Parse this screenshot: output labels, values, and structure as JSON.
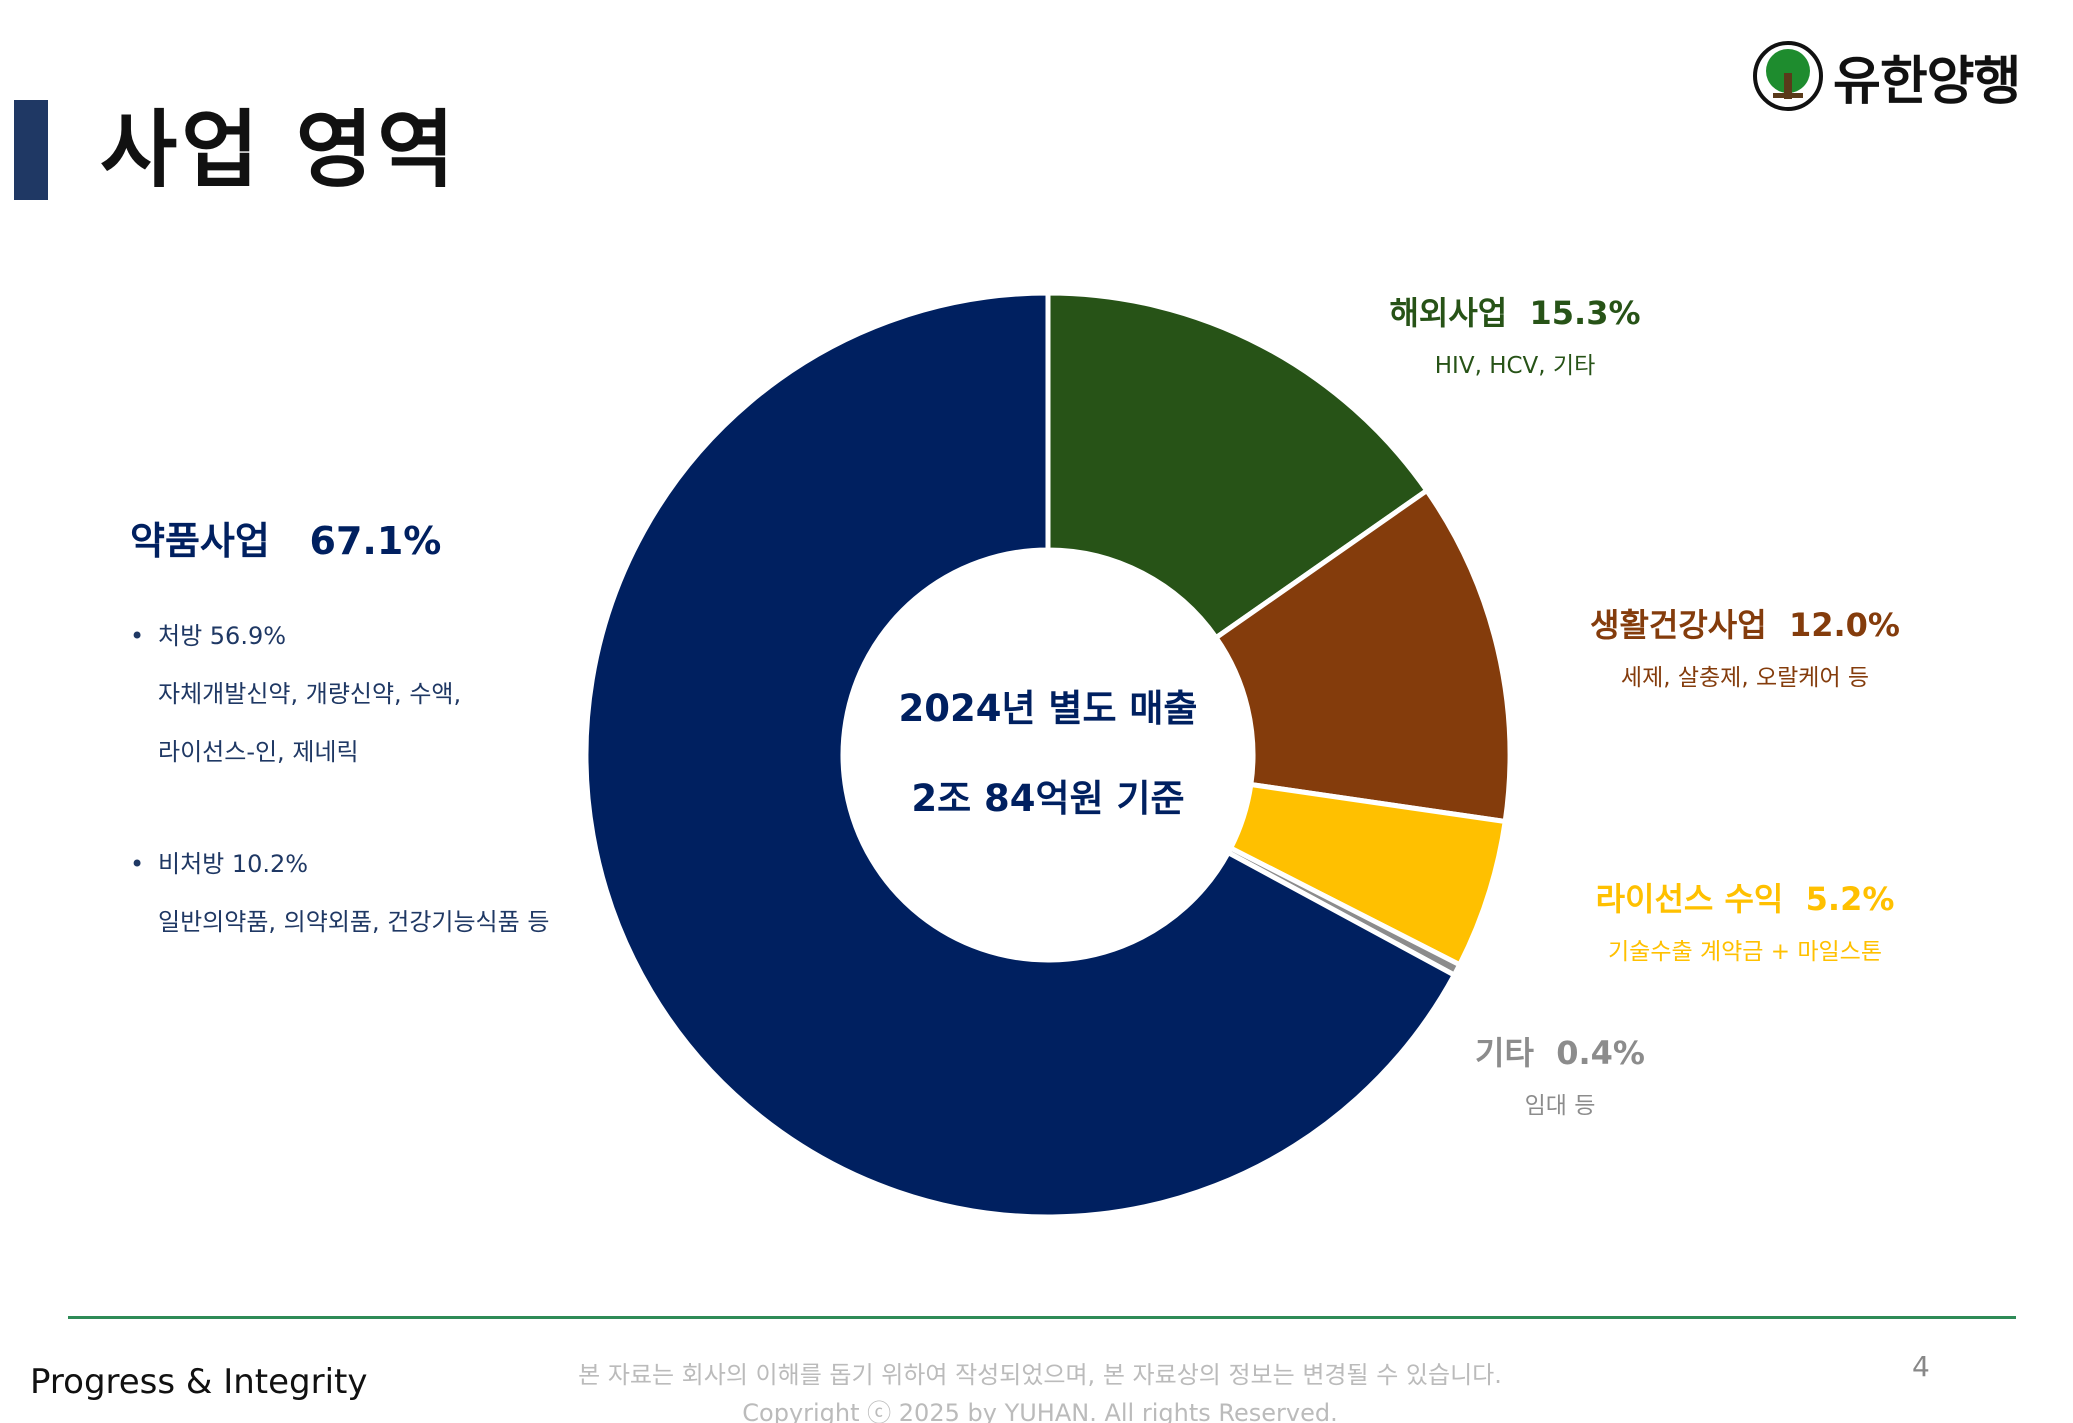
{
  "page": {
    "title": "사업 영역",
    "page_number": "4",
    "slogan": "Progress & Integrity",
    "disclaimer": "본 자료는 회사의 이해를 돕기 위하여 작성되었으며, 본 자료상의 정보는 변경될 수 있습니다.",
    "copyright": "Copyright ⓒ 2025 by YUHAN.  All rights Reserved."
  },
  "logo": {
    "text": "유한양행",
    "icon": "tree-emblem-icon"
  },
  "left_panel": {
    "heading": "약품사업   67.1%",
    "items": [
      {
        "bullet": "•",
        "text": "처방 56.9%"
      },
      {
        "text": "자체개발신약, 개량신약, 수액,"
      },
      {
        "text": "라이선스-인, 제네릭"
      },
      {
        "bullet": "•",
        "text": "비처방 10.2%"
      },
      {
        "text": "일반의약품, 의약외품, 건강기능식품 등"
      }
    ]
  },
  "chart_data": {
    "type": "pie",
    "variant": "donut",
    "center_text": [
      "2024년 별도 매출",
      "2조 84억원 기준"
    ],
    "series": [
      {
        "name": "해외사업",
        "value": 15.3,
        "value_label": "15.3%",
        "detail": "HIV, HCV, 기타",
        "color": "#275317"
      },
      {
        "name": "생활건강사업",
        "value": 12.0,
        "value_label": "12.0%",
        "detail": "세제, 살충제, 오랄케어 등",
        "color": "#843c0c"
      },
      {
        "name": "라이선스 수익",
        "value": 5.2,
        "value_label": "5.2%",
        "detail": "기술수출 계약금 + 마일스톤",
        "color": "#ffc000"
      },
      {
        "name": "기타",
        "value": 0.4,
        "value_label": "0.4%",
        "detail": "임대 등",
        "color": "#8c8c8c"
      },
      {
        "name": "약품사업",
        "value": 67.1,
        "value_label": "67.1%",
        "detail": "",
        "color": "#002060"
      }
    ],
    "legend": "none",
    "label_colors": {
      "해외사업": "#275317",
      "생활건강사업": "#843c0c",
      "라이선스 수익": "#ffc000",
      "기타": "#8c8c8c"
    }
  },
  "colors": {
    "accent_bar": "#1f3864",
    "footer_line": "#2e8b57"
  }
}
